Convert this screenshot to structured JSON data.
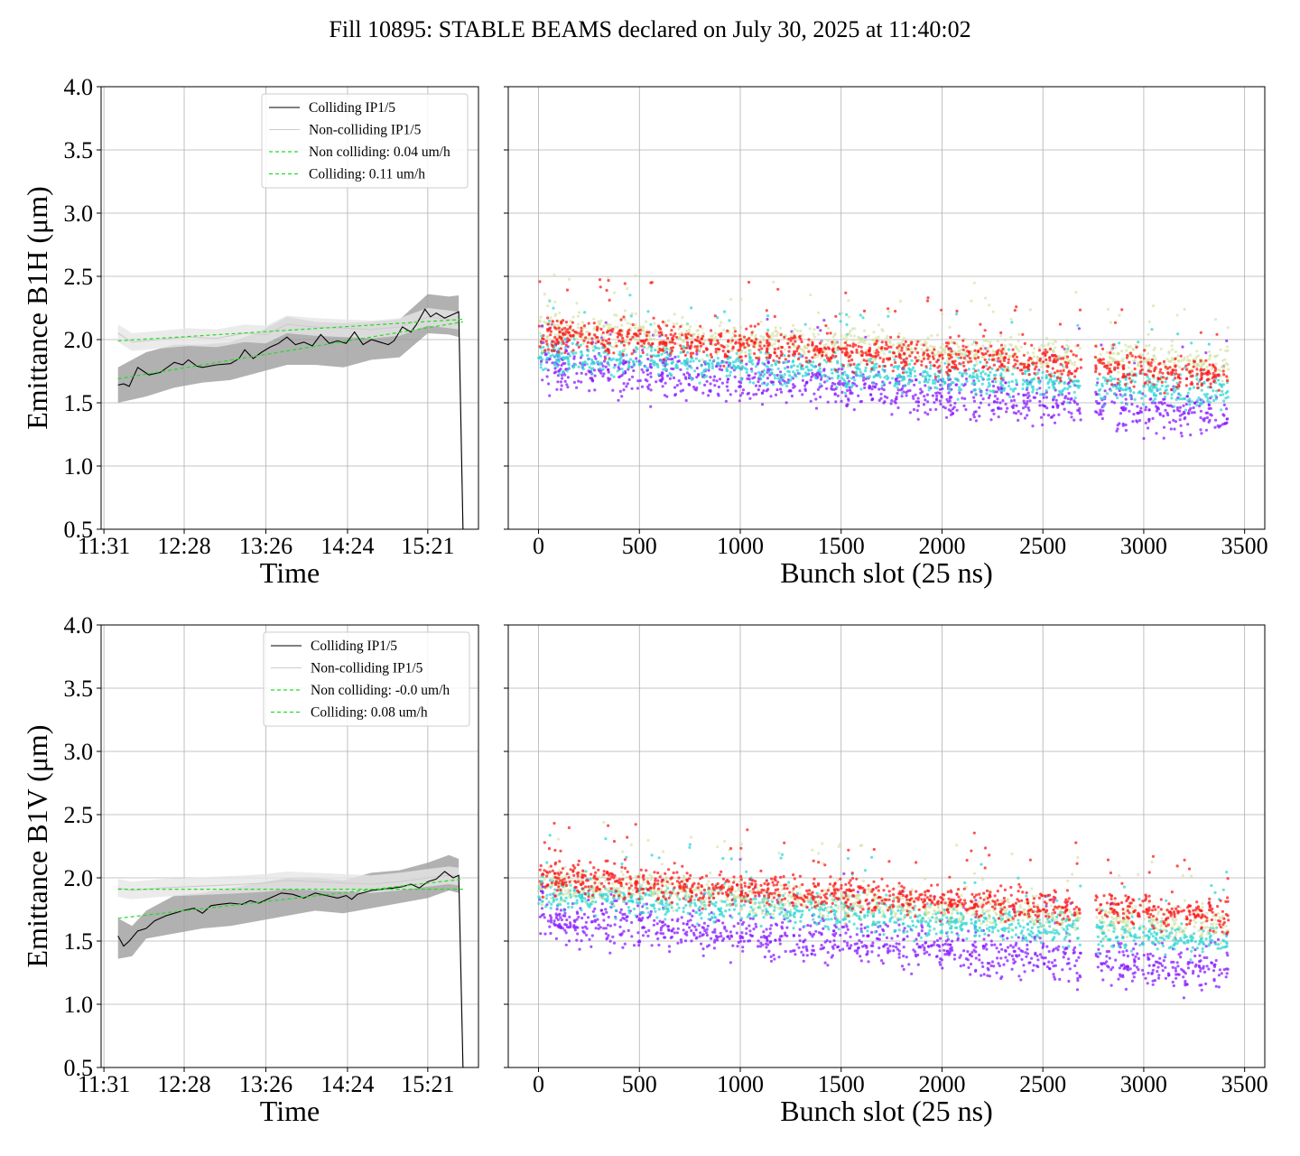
{
  "figure_title": "Fill 10895: STABLE BEAMS declared on July 30, 2025 at 11:40:02",
  "colors": {
    "colliding": "#000000",
    "non_colliding": "#cccccc",
    "fit": "#22dd22",
    "band": "#9e9e9e",
    "scatter_series": [
      "#8a1cff",
      "#33d6d6",
      "#cfe09a",
      "#ff1a1a"
    ]
  },
  "chart_data": [
    {
      "type": "line",
      "panel": "top-left",
      "xlabel": "Time",
      "ylabel": "Emittance B1H (μm)",
      "ylim": [
        0.5,
        4.0
      ],
      "yticks": [
        "0.5",
        "1.0",
        "1.5",
        "2.0",
        "2.5",
        "3.0",
        "3.5",
        "4.0"
      ],
      "xticks": [
        "11:31",
        "12:28",
        "13:26",
        "14:24",
        "15:21"
      ],
      "xtick_minutes": [
        0,
        57,
        115,
        173,
        230
      ],
      "xlim_minutes": [
        -2,
        266
      ],
      "grid": true,
      "legend_position": "top-right",
      "legend": [
        "Colliding IP1/5",
        "Non-colliding IP1/5",
        "Non colliding: 0.04 um/h",
        "Colliding: 0.11 um/h"
      ],
      "series": [
        {
          "name": "Colliding IP1/5",
          "x": [
            10,
            14,
            18,
            24,
            28,
            32,
            40,
            50,
            56,
            60,
            66,
            70,
            80,
            90,
            96,
            100,
            106,
            112,
            118,
            124,
            130,
            136,
            142,
            148,
            154,
            160,
            166,
            172,
            178,
            184,
            190,
            196,
            202,
            206,
            212,
            218,
            222,
            228,
            232,
            236,
            242,
            248,
            252,
            255
          ],
          "y": [
            1.64,
            1.65,
            1.63,
            1.78,
            1.75,
            1.72,
            1.74,
            1.82,
            1.8,
            1.84,
            1.79,
            1.78,
            1.8,
            1.81,
            1.85,
            1.92,
            1.85,
            1.9,
            1.94,
            1.97,
            2.02,
            1.96,
            1.98,
            1.95,
            2.04,
            1.97,
            1.99,
            1.97,
            2.06,
            1.96,
            2.0,
            1.98,
            1.96,
            1.99,
            2.1,
            2.06,
            2.12,
            2.24,
            2.18,
            2.21,
            2.17,
            2.2,
            2.22,
            0.5
          ]
        },
        {
          "name": "Non-colliding IP1/5",
          "x": [
            10,
            20,
            40,
            60,
            80,
            100,
            115,
            130,
            150,
            170,
            190,
            210,
            230,
            245,
            252,
            255
          ],
          "y": [
            2.05,
            1.98,
            2.0,
            2.02,
            2.01,
            2.05,
            2.04,
            2.12,
            2.1,
            2.09,
            2.08,
            2.1,
            2.18,
            2.16,
            2.15,
            0.5
          ]
        },
        {
          "name": "Non colliding: 0.04 um/h",
          "x": [
            10,
            255
          ],
          "y": [
            1.99,
            2.16
          ]
        },
        {
          "name": "Colliding: 0.11 um/h",
          "x": [
            10,
            255
          ],
          "y": [
            1.69,
            2.14
          ]
        }
      ],
      "band": {
        "x": [
          10,
          30,
          50,
          70,
          90,
          110,
          130,
          150,
          170,
          190,
          210,
          230,
          245,
          252
        ],
        "lower": [
          1.5,
          1.55,
          1.62,
          1.66,
          1.68,
          1.74,
          1.8,
          1.8,
          1.78,
          1.84,
          1.86,
          2.05,
          2.04,
          2.02
        ],
        "upper": [
          1.78,
          1.9,
          1.96,
          1.96,
          1.98,
          2.06,
          2.18,
          2.14,
          2.13,
          2.14,
          2.16,
          2.36,
          2.34,
          2.35
        ]
      }
    },
    {
      "type": "scatter",
      "panel": "top-right",
      "xlabel": "Bunch slot (25 ns)",
      "ylabel": "",
      "xlim": [
        -150,
        3600
      ],
      "ylim": [
        0.5,
        4.0
      ],
      "xticks": [
        "0",
        "500",
        "1000",
        "1500",
        "2000",
        "2500",
        "3000",
        "3500"
      ],
      "grid": true,
      "trains_start": [
        0,
        80,
        210,
        340,
        480,
        600,
        730,
        870,
        1000,
        1130,
        1260,
        1400,
        1520,
        1650,
        1780,
        1910,
        2030,
        2160,
        2290,
        2420,
        2550,
        2760,
        2890,
        3020,
        3150,
        3280
      ],
      "train_length": 140,
      "series_means_start": [
        1.8,
        1.88,
        2.08,
        2.05
      ],
      "series_means_end": [
        1.4,
        1.58,
        1.8,
        1.72
      ]
    },
    {
      "type": "line",
      "panel": "bottom-left",
      "xlabel": "Time",
      "ylabel": "Emittance B1V (μm)",
      "ylim": [
        0.5,
        4.0
      ],
      "yticks": [
        "0.5",
        "1.0",
        "1.5",
        "2.0",
        "2.5",
        "3.0",
        "3.5",
        "4.0"
      ],
      "xticks": [
        "11:31",
        "12:28",
        "13:26",
        "14:24",
        "15:21"
      ],
      "xtick_minutes": [
        0,
        57,
        115,
        173,
        230
      ],
      "xlim_minutes": [
        -2,
        266
      ],
      "grid": true,
      "legend_position": "top-right",
      "legend": [
        "Colliding IP1/5",
        "Non-colliding IP1/5",
        "Non colliding: -0.0 um/h",
        "Colliding: 0.08 um/h"
      ],
      "series": [
        {
          "name": "Colliding IP1/5",
          "x": [
            10,
            14,
            18,
            24,
            30,
            36,
            44,
            50,
            56,
            64,
            70,
            76,
            82,
            90,
            98,
            104,
            110,
            118,
            126,
            134,
            142,
            150,
            158,
            166,
            172,
            176,
            180,
            190,
            198,
            206,
            212,
            218,
            224,
            230,
            236,
            242,
            248,
            252,
            255
          ],
          "y": [
            1.54,
            1.46,
            1.5,
            1.58,
            1.6,
            1.66,
            1.7,
            1.72,
            1.74,
            1.76,
            1.72,
            1.78,
            1.79,
            1.8,
            1.79,
            1.82,
            1.8,
            1.84,
            1.88,
            1.87,
            1.84,
            1.88,
            1.86,
            1.84,
            1.86,
            1.83,
            1.87,
            1.9,
            1.91,
            1.92,
            1.93,
            1.95,
            1.92,
            1.97,
            1.99,
            2.05,
            2.0,
            2.02,
            0.5
          ]
        },
        {
          "name": "Non-colliding IP1/5",
          "x": [
            10,
            20,
            40,
            60,
            80,
            100,
            115,
            130,
            150,
            170,
            190,
            210,
            230,
            245,
            252,
            255
          ],
          "y": [
            1.92,
            1.9,
            1.92,
            1.93,
            1.94,
            1.95,
            1.96,
            1.98,
            1.97,
            1.96,
            1.95,
            1.97,
            2.0,
            2.02,
            2.01,
            0.5
          ]
        },
        {
          "name": "Non colliding: -0.0 um/h",
          "x": [
            10,
            255
          ],
          "y": [
            1.91,
            1.91
          ]
        },
        {
          "name": "Colliding: 0.08 um/h",
          "x": [
            10,
            255
          ],
          "y": [
            1.68,
            1.99
          ]
        }
      ],
      "band": {
        "x": [
          10,
          20,
          30,
          50,
          70,
          90,
          110,
          130,
          150,
          170,
          190,
          210,
          230,
          245,
          252
        ],
        "lower": [
          1.36,
          1.38,
          1.52,
          1.56,
          1.6,
          1.62,
          1.66,
          1.7,
          1.74,
          1.72,
          1.76,
          1.8,
          1.84,
          1.9,
          1.88
        ],
        "upper": [
          1.68,
          1.62,
          1.74,
          1.86,
          1.88,
          1.92,
          1.96,
          2.0,
          2.0,
          1.98,
          2.04,
          2.06,
          2.12,
          2.18,
          2.15
        ]
      }
    },
    {
      "type": "scatter",
      "panel": "bottom-right",
      "xlabel": "Bunch slot (25 ns)",
      "ylabel": "",
      "xlim": [
        -150,
        3600
      ],
      "ylim": [
        0.5,
        4.0
      ],
      "xticks": [
        "0",
        "500",
        "1000",
        "1500",
        "2000",
        "2500",
        "3000",
        "3500"
      ],
      "grid": true,
      "trains_start": [
        0,
        80,
        210,
        340,
        480,
        600,
        730,
        870,
        1000,
        1130,
        1260,
        1400,
        1520,
        1650,
        1780,
        1910,
        2030,
        2160,
        2290,
        2420,
        2550,
        2760,
        2890,
        3020,
        3150,
        3280
      ],
      "train_length": 140,
      "series_means_start": [
        1.68,
        1.88,
        1.96,
        2.0
      ],
      "series_means_end": [
        1.26,
        1.5,
        1.62,
        1.7
      ]
    }
  ]
}
